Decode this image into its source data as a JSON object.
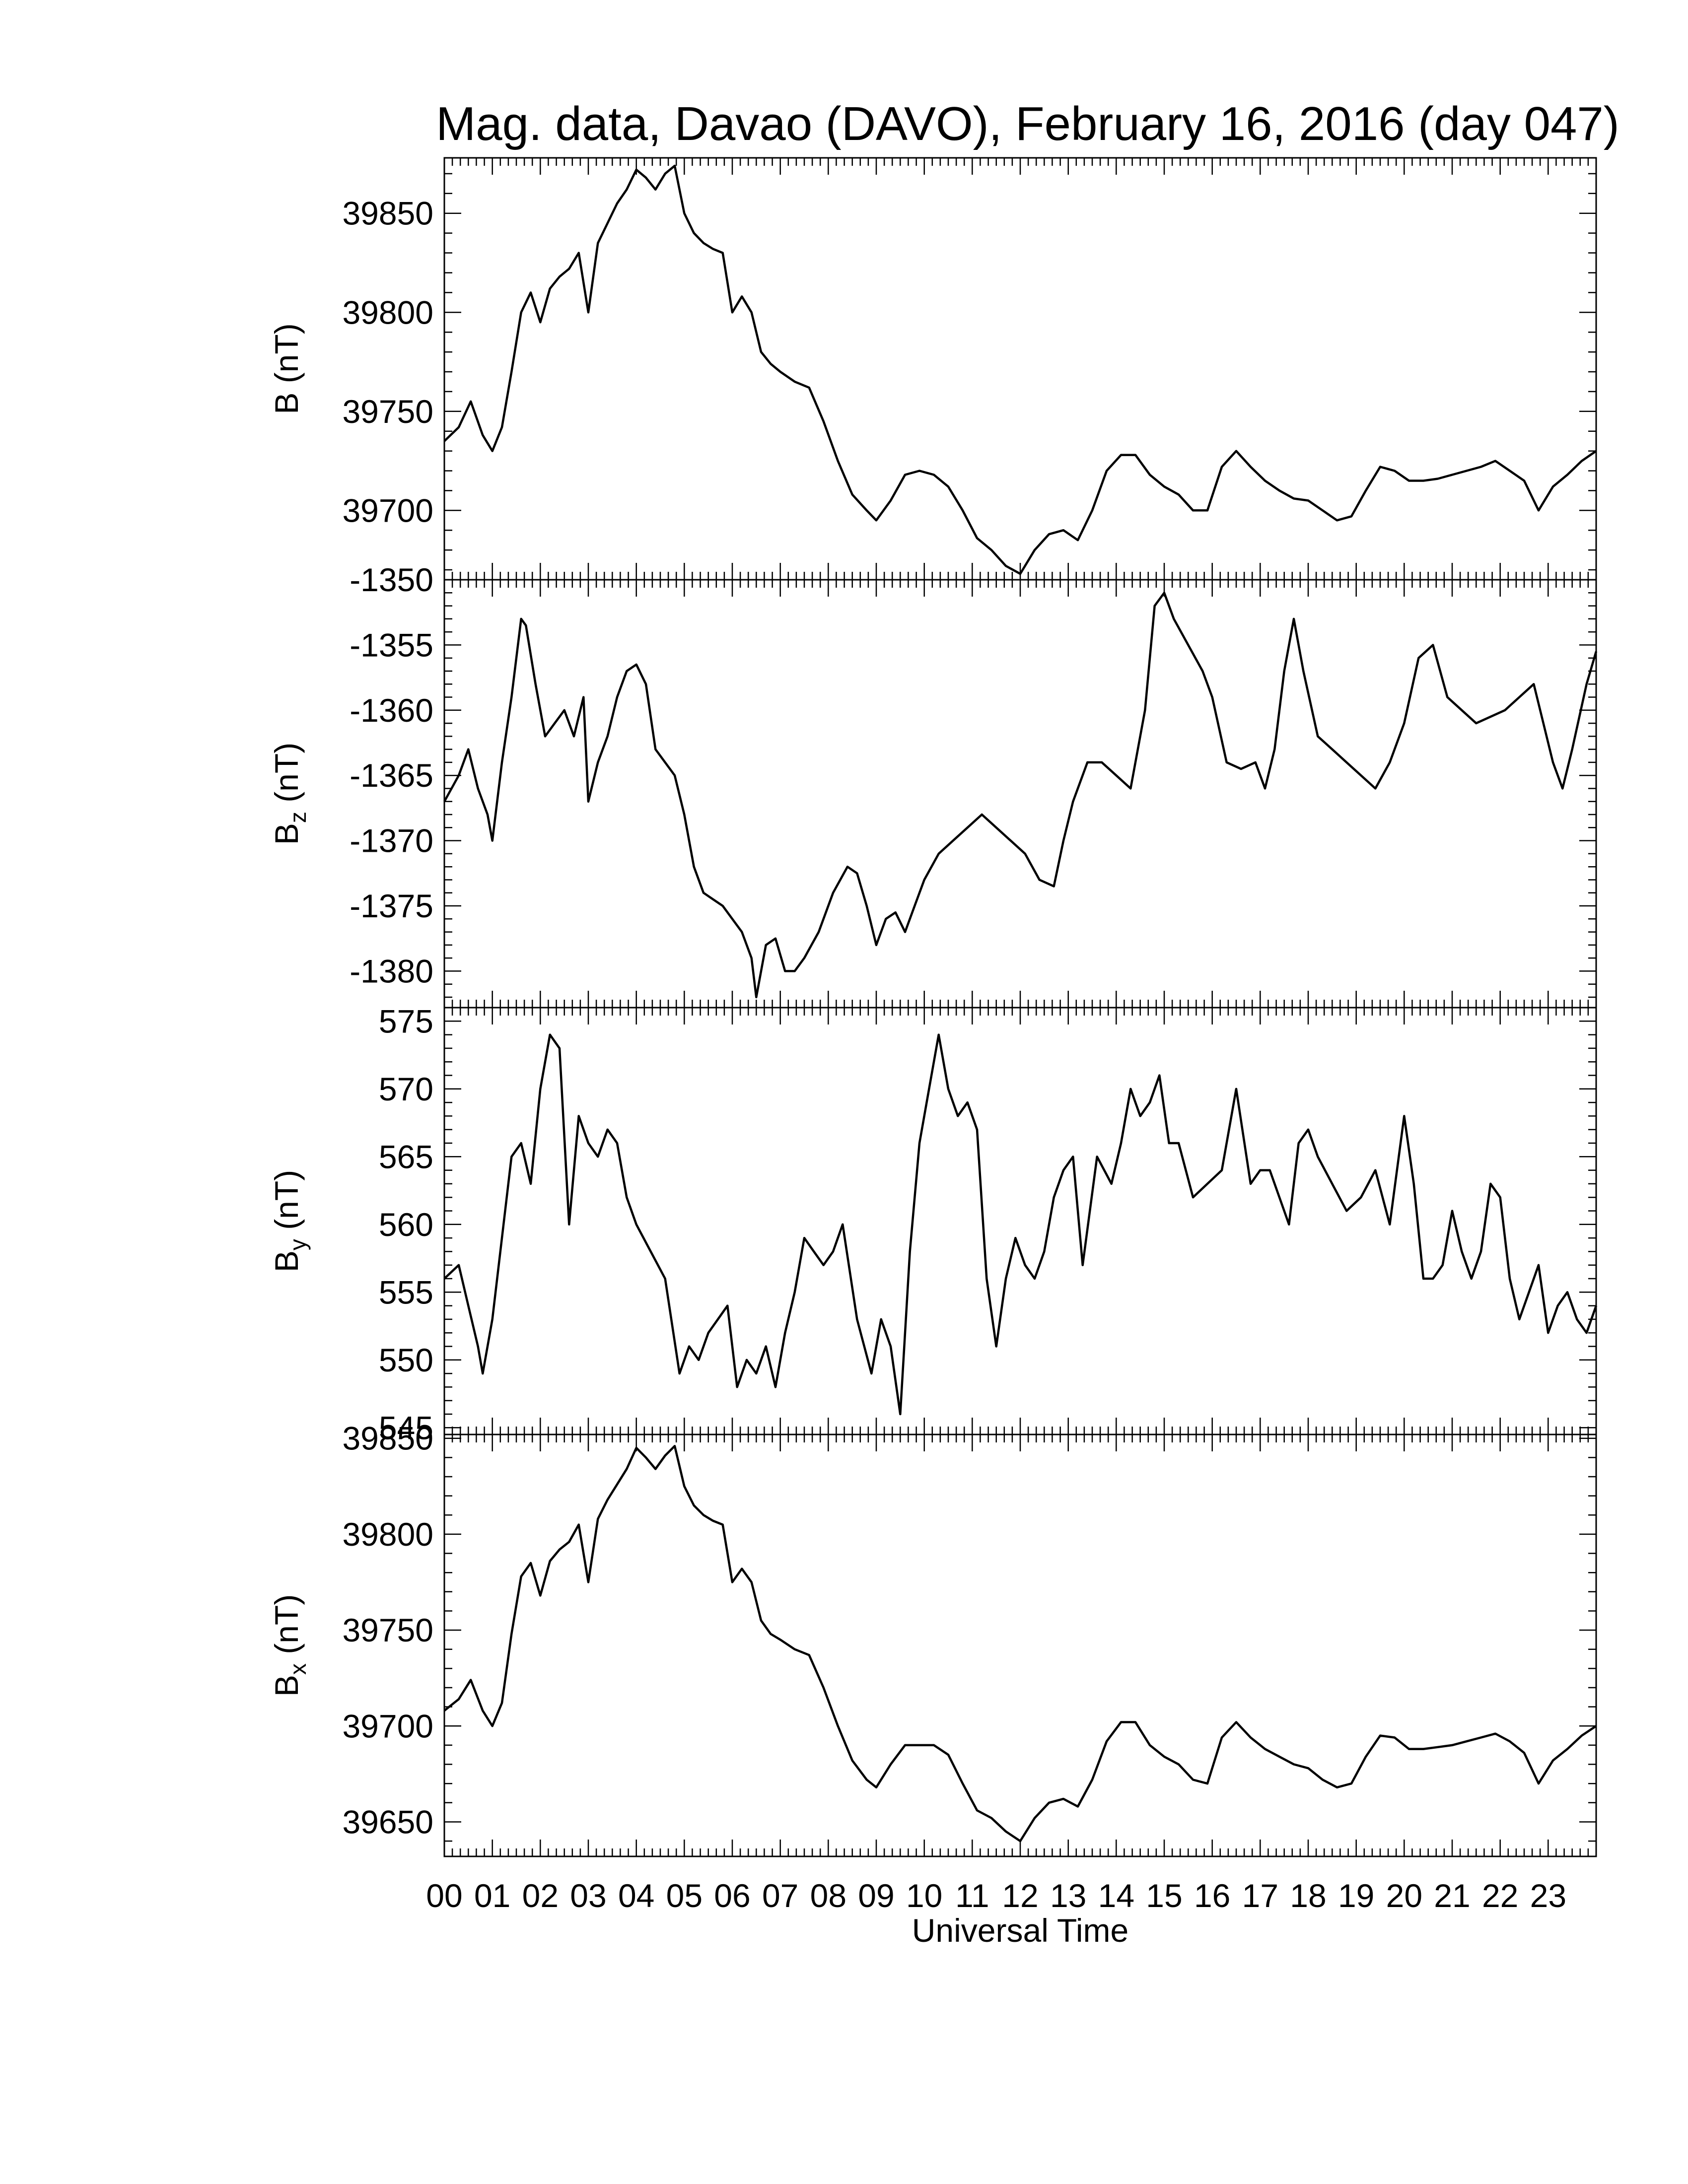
{
  "chart_data": {
    "type": "line",
    "title": "Mag. data, Davao (DAVO), February 16, 2016 (day 047)",
    "xlabel": "Universal Time",
    "xlim": [
      0,
      24
    ],
    "x_tick_labels": [
      "00",
      "01",
      "02",
      "03",
      "04",
      "05",
      "06",
      "07",
      "08",
      "09",
      "10",
      "11",
      "12",
      "13",
      "14",
      "15",
      "16",
      "17",
      "18",
      "19",
      "20",
      "21",
      "22",
      "23"
    ],
    "line_color": "#000000",
    "panels": [
      {
        "id": "B",
        "ylabel": "B (nT)",
        "ylabel_main": "B",
        "ylabel_sub": "",
        "ylabel_unit": " (nT)",
        "ylim": [
          39665,
          39878
        ],
        "yticks": [
          39700,
          39750,
          39800,
          39850
        ],
        "x": [
          0,
          0.3,
          0.55,
          0.8,
          1.0,
          1.2,
          1.4,
          1.6,
          1.8,
          2.0,
          2.2,
          2.4,
          2.6,
          2.8,
          3.0,
          3.2,
          3.4,
          3.6,
          3.8,
          4.0,
          4.2,
          4.4,
          4.6,
          4.8,
          5.0,
          5.2,
          5.4,
          5.6,
          5.8,
          6.0,
          6.2,
          6.4,
          6.6,
          6.8,
          7.0,
          7.3,
          7.6,
          7.9,
          8.2,
          8.5,
          8.8,
          9.0,
          9.3,
          9.6,
          9.9,
          10.2,
          10.5,
          10.8,
          11.1,
          11.4,
          11.7,
          12.0,
          12.3,
          12.6,
          12.9,
          13.2,
          13.5,
          13.8,
          14.1,
          14.4,
          14.7,
          15.0,
          15.3,
          15.6,
          15.9,
          16.2,
          16.5,
          16.8,
          17.1,
          17.4,
          17.7,
          18.0,
          18.3,
          18.6,
          18.9,
          19.2,
          19.5,
          19.8,
          20.1,
          20.4,
          20.7,
          21.0,
          21.3,
          21.6,
          21.9,
          22.2,
          22.5,
          22.8,
          23.1,
          23.4,
          23.7,
          24.0
        ],
        "y": [
          39735,
          39742,
          39755,
          39738,
          39730,
          39742,
          39770,
          39800,
          39810,
          39795,
          39812,
          39818,
          39822,
          39830,
          39800,
          39835,
          39845,
          39855,
          39862,
          39872,
          39868,
          39862,
          39870,
          39874,
          39850,
          39840,
          39835,
          39832,
          39830,
          39800,
          39808,
          39800,
          39780,
          39774,
          39770,
          39765,
          39762,
          39745,
          39725,
          39708,
          39700,
          39695,
          39705,
          39718,
          39720,
          39718,
          39712,
          39700,
          39686,
          39680,
          39672,
          39668,
          39680,
          39688,
          39690,
          39685,
          39700,
          39720,
          39728,
          39728,
          39718,
          39712,
          39708,
          39700,
          39700,
          39722,
          39730,
          39722,
          39715,
          39710,
          39706,
          39705,
          39700,
          39695,
          39697,
          39710,
          39722,
          39720,
          39715,
          39715,
          39716,
          39718,
          39720,
          39722,
          39725,
          39720,
          39715,
          39700,
          39712,
          39718,
          39725,
          39730
        ]
      },
      {
        "id": "Bz",
        "ylabel": "Bz (nT)",
        "ylabel_main": "B",
        "ylabel_sub": "z",
        "ylabel_unit": " (nT)",
        "ylim": [
          -1382.8,
          -1350
        ],
        "yticks": [
          -1380,
          -1375,
          -1370,
          -1365,
          -1360,
          -1355,
          -1350
        ],
        "x": [
          0,
          0.3,
          0.5,
          0.7,
          0.9,
          1.0,
          1.2,
          1.4,
          1.6,
          1.7,
          1.9,
          2.1,
          2.3,
          2.5,
          2.7,
          2.9,
          3.0,
          3.2,
          3.4,
          3.6,
          3.8,
          4.0,
          4.2,
          4.4,
          4.6,
          4.8,
          5.0,
          5.2,
          5.4,
          5.6,
          5.8,
          6.0,
          6.2,
          6.4,
          6.5,
          6.7,
          6.9,
          7.1,
          7.3,
          7.5,
          7.8,
          8.1,
          8.4,
          8.6,
          8.8,
          9.0,
          9.2,
          9.4,
          9.6,
          9.8,
          10.0,
          10.3,
          10.6,
          10.9,
          11.2,
          11.5,
          11.8,
          12.1,
          12.4,
          12.7,
          12.9,
          13.1,
          13.4,
          13.7,
          14.0,
          14.3,
          14.6,
          14.8,
          15.0,
          15.2,
          15.5,
          15.8,
          16.0,
          16.3,
          16.6,
          16.9,
          17.1,
          17.3,
          17.5,
          17.7,
          17.9,
          18.2,
          18.5,
          18.8,
          19.1,
          19.4,
          19.7,
          20.0,
          20.3,
          20.6,
          20.9,
          21.2,
          21.5,
          21.8,
          22.1,
          22.4,
          22.7,
          22.9,
          23.1,
          23.3,
          23.5,
          23.8,
          24.0
        ],
        "y": [
          -1367,
          -1365,
          -1363,
          -1366,
          -1368,
          -1370,
          -1364,
          -1359,
          -1353,
          -1353.5,
          -1358,
          -1362,
          -1361,
          -1360,
          -1362,
          -1359,
          -1367,
          -1364,
          -1362,
          -1359,
          -1357,
          -1356.5,
          -1358,
          -1363,
          -1364,
          -1365,
          -1368,
          -1372,
          -1374,
          -1374.5,
          -1375,
          -1376,
          -1377,
          -1379,
          -1382,
          -1378,
          -1377.5,
          -1380,
          -1380,
          -1379,
          -1377,
          -1374,
          -1372,
          -1372.5,
          -1375,
          -1378,
          -1376,
          -1375.5,
          -1377,
          -1375,
          -1373,
          -1371,
          -1370,
          -1369,
          -1368,
          -1369,
          -1370,
          -1371,
          -1373,
          -1373.5,
          -1370,
          -1367,
          -1364,
          -1364,
          -1365,
          -1366,
          -1360,
          -1352,
          -1351,
          -1353,
          -1355,
          -1357,
          -1359,
          -1364,
          -1364.5,
          -1364,
          -1366,
          -1363,
          -1357,
          -1353,
          -1357,
          -1362,
          -1363,
          -1364,
          -1365,
          -1366,
          -1364,
          -1361,
          -1356,
          -1355,
          -1359,
          -1360,
          -1361,
          -1360.5,
          -1360,
          -1359,
          -1358,
          -1361,
          -1364,
          -1366,
          -1363,
          -1358,
          -1355.5
        ]
      },
      {
        "id": "By",
        "ylabel": "By (nT)",
        "ylabel_main": "B",
        "ylabel_sub": "y",
        "ylabel_unit": " (nT)",
        "ylim": [
          544.5,
          576
        ],
        "yticks": [
          545,
          550,
          555,
          560,
          565,
          570,
          575
        ],
        "x": [
          0,
          0.3,
          0.5,
          0.7,
          0.8,
          1.0,
          1.2,
          1.4,
          1.6,
          1.8,
          2.0,
          2.2,
          2.4,
          2.6,
          2.8,
          3.0,
          3.2,
          3.4,
          3.6,
          3.8,
          4.0,
          4.3,
          4.6,
          4.9,
          5.1,
          5.3,
          5.5,
          5.7,
          5.9,
          6.1,
          6.3,
          6.5,
          6.7,
          6.9,
          7.1,
          7.3,
          7.5,
          7.7,
          7.9,
          8.1,
          8.3,
          8.6,
          8.9,
          9.1,
          9.3,
          9.5,
          9.7,
          9.9,
          10.1,
          10.3,
          10.5,
          10.7,
          10.9,
          11.1,
          11.3,
          11.5,
          11.7,
          11.9,
          12.1,
          12.3,
          12.5,
          12.7,
          12.9,
          13.1,
          13.3,
          13.6,
          13.9,
          14.1,
          14.3,
          14.5,
          14.7,
          14.9,
          15.1,
          15.3,
          15.6,
          15.9,
          16.2,
          16.5,
          16.8,
          17.0,
          17.2,
          17.4,
          17.6,
          17.8,
          18.0,
          18.2,
          18.5,
          18.8,
          19.1,
          19.4,
          19.7,
          20.0,
          20.2,
          20.4,
          20.6,
          20.8,
          21.0,
          21.2,
          21.4,
          21.6,
          21.8,
          22.0,
          22.2,
          22.4,
          22.6,
          22.8,
          23.0,
          23.2,
          23.4,
          23.6,
          23.8,
          24.0
        ],
        "y": [
          556,
          557,
          554,
          551,
          549,
          553,
          559,
          565,
          566,
          563,
          570,
          574,
          573,
          560,
          568,
          566,
          565,
          567,
          566,
          562,
          560,
          558,
          556,
          549,
          551,
          550,
          552,
          553,
          554,
          548,
          550,
          549,
          551,
          548,
          552,
          555,
          559,
          558,
          557,
          558,
          560,
          553,
          549,
          553,
          551,
          546,
          558,
          566,
          570,
          574,
          570,
          568,
          569,
          567,
          556,
          551,
          556,
          559,
          557,
          556,
          558,
          562,
          564,
          565,
          557,
          565,
          563,
          566,
          570,
          568,
          569,
          571,
          566,
          566,
          562,
          563,
          564,
          570,
          563,
          564,
          564,
          562,
          560,
          566,
          567,
          565,
          563,
          561,
          562,
          564,
          560,
          568,
          563,
          556,
          556,
          557,
          561,
          558,
          556,
          558,
          563,
          562,
          556,
          553,
          555,
          557,
          552,
          554,
          555,
          553,
          552,
          554
        ]
      },
      {
        "id": "Bx",
        "ylabel": "Bx (nT)",
        "ylabel_main": "B",
        "ylabel_sub": "x",
        "ylabel_unit": " (nT)",
        "ylim": [
          39632,
          39852
        ],
        "yticks": [
          39650,
          39700,
          39750,
          39800,
          39850
        ],
        "x": [
          0,
          0.3,
          0.55,
          0.8,
          1.0,
          1.2,
          1.4,
          1.6,
          1.8,
          2.0,
          2.2,
          2.4,
          2.6,
          2.8,
          3.0,
          3.2,
          3.4,
          3.6,
          3.8,
          4.0,
          4.2,
          4.4,
          4.6,
          4.8,
          5.0,
          5.2,
          5.4,
          5.6,
          5.8,
          6.0,
          6.2,
          6.4,
          6.6,
          6.8,
          7.0,
          7.3,
          7.6,
          7.9,
          8.2,
          8.5,
          8.8,
          9.0,
          9.3,
          9.6,
          9.9,
          10.2,
          10.5,
          10.8,
          11.1,
          11.4,
          11.7,
          12.0,
          12.3,
          12.6,
          12.9,
          13.2,
          13.5,
          13.8,
          14.1,
          14.4,
          14.7,
          15.0,
          15.3,
          15.6,
          15.9,
          16.2,
          16.5,
          16.8,
          17.1,
          17.4,
          17.7,
          18.0,
          18.3,
          18.6,
          18.9,
          19.2,
          19.5,
          19.8,
          20.1,
          20.4,
          20.7,
          21.0,
          21.3,
          21.6,
          21.9,
          22.2,
          22.5,
          22.8,
          23.1,
          23.4,
          23.7,
          24.0
        ],
        "y": [
          39708,
          39714,
          39724,
          39708,
          39700,
          39712,
          39748,
          39778,
          39785,
          39768,
          39786,
          39792,
          39796,
          39805,
          39775,
          39808,
          39818,
          39826,
          39834,
          39845,
          39840,
          39834,
          39841,
          39846,
          39825,
          39815,
          39810,
          39807,
          39805,
          39775,
          39782,
          39775,
          39755,
          39748,
          39745,
          39740,
          39737,
          39720,
          39700,
          39682,
          39672,
          39668,
          39680,
          39690,
          39690,
          39690,
          39685,
          39670,
          39656,
          39652,
          39645,
          39640,
          39652,
          39660,
          39662,
          39658,
          39672,
          39692,
          39702,
          39702,
          39690,
          39684,
          39680,
          39672,
          39670,
          39694,
          39702,
          39694,
          39688,
          39684,
          39680,
          39678,
          39672,
          39668,
          39670,
          39684,
          39695,
          39694,
          39688,
          39688,
          39689,
          39690,
          39692,
          39694,
          39696,
          39692,
          39686,
          39670,
          39682,
          39688,
          39695,
          39700
        ]
      }
    ]
  }
}
